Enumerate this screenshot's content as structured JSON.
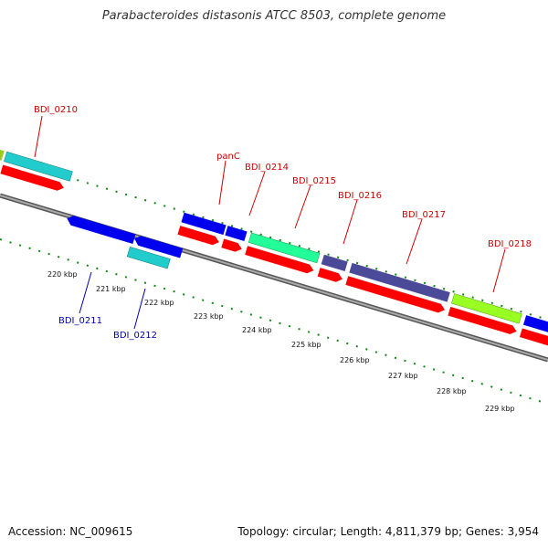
{
  "title": "Parabacteroides distasonis ATCC 8503, complete genome",
  "footer": {
    "accession": "Accession: NC_009615",
    "summary": "Topology: circular; Length: 4,811,379 bp; Genes: 3,954"
  },
  "scale_labels": [
    "220 kbp",
    "221 kbp",
    "222 kbp",
    "223 kbp",
    "224 kbp",
    "225 kbp",
    "226 kbp",
    "227 kbp",
    "228 kbp",
    "229 kbp"
  ],
  "gene_labels_top": [
    "BDI_0210",
    "panC",
    "BDI_0214",
    "BDI_0215",
    "BDI_0216",
    "BDI_0217",
    "BDI_0218"
  ],
  "gene_labels_bottom": [
    "BDI_0211",
    "BDI_0212"
  ],
  "colors": {
    "cds_red": "#ff0000",
    "gene_blue": "#0000ee",
    "cyan": "#22cccc",
    "spring_green": "#22ff99",
    "slate": "#4a4a99",
    "lime": "#99ff22",
    "track": "#888888",
    "tick_green": "#118811",
    "label_red": "#cc0000",
    "label_blue": "#0000aa"
  }
}
